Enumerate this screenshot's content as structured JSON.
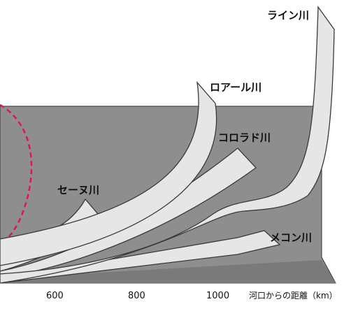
{
  "rivers": [
    {
      "id": "rhine",
      "label": "ライン川"
    },
    {
      "id": "loire",
      "label": "ロアール川"
    },
    {
      "id": "colorado",
      "label": "コロラド川"
    },
    {
      "id": "seine",
      "label": "セーヌ川"
    },
    {
      "id": "mekong",
      "label": "メコン川"
    }
  ],
  "axis": {
    "ticks": [
      "600",
      "800",
      "1000"
    ],
    "title": "河口からの距離（km）"
  },
  "colors": {
    "band_fill": "#e6e6e6",
    "band_stroke": "#3a3a3a",
    "backdrop": "#8e8e8e",
    "dashed_arc": "#e0145a"
  }
}
